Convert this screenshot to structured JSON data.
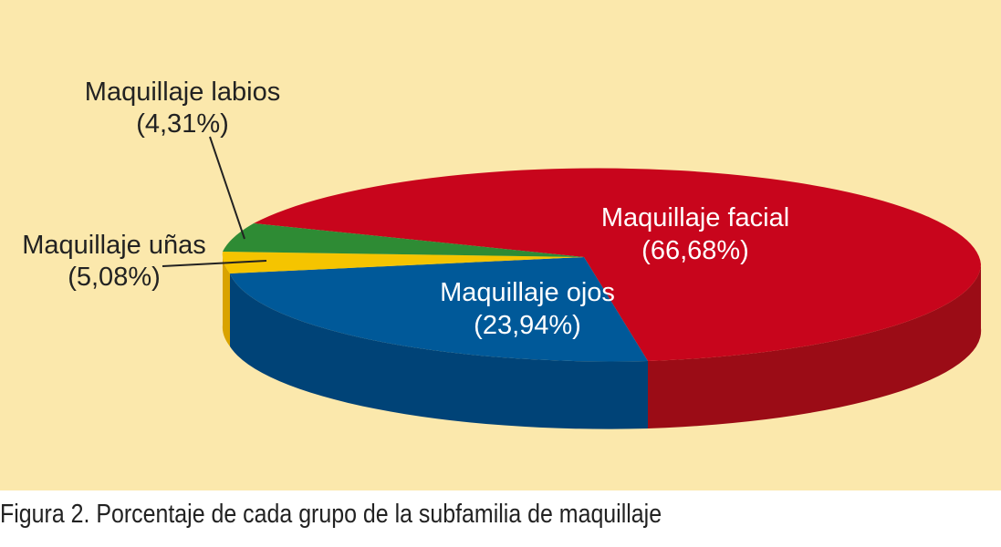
{
  "chart_data": {
    "type": "pie",
    "subtype": "3d-exploded-ellipse",
    "caption": "Figura 2. Porcentaje de cada grupo de la subfamilia de maquillaje",
    "slices": [
      {
        "name": "Maquillaje facial",
        "value_label": "(66,68%)",
        "value": 66.68,
        "color": "#c8051c",
        "side_color": "#9b0c16",
        "label_color": "#ffffff"
      },
      {
        "name": "Maquillaje ojos",
        "value_label": "(23,94%)",
        "value": 23.94,
        "color": "#005999",
        "side_color": "#004377",
        "label_color": "#ffffff"
      },
      {
        "name": "Maquillaje uñas",
        "value_label": "(5,08%)",
        "value": 5.08,
        "color": "#f5c400",
        "side_color": "#d9a300",
        "label_color": "#222222"
      },
      {
        "name": "Maquillaje labios",
        "value_label": "(4,31%)",
        "value": 4.31,
        "color": "#2e8b34",
        "side_color": "#1f6b24",
        "label_color": "#222222"
      }
    ],
    "background_color": "#fbe8ac"
  }
}
